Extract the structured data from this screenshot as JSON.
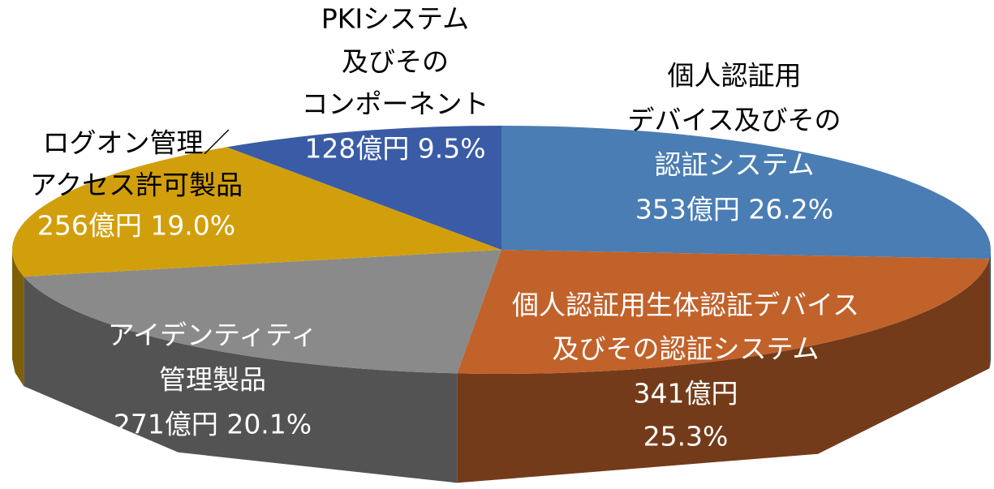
{
  "chart_data": {
    "type": "pie3d",
    "categories": [
      [
        "個人認証用",
        "デバイス及びその",
        "認証システム"
      ],
      [
        "個人認証用生体認証デバイス",
        "及びその認証システム"
      ],
      [
        "アイデンティティ",
        "管理製品"
      ],
      [
        "ログオン管理／",
        "アクセス許可製品"
      ],
      [
        "PKIシステム",
        "及びその",
        "コンポーネント"
      ]
    ],
    "values": [
      353,
      341,
      271,
      256,
      128
    ],
    "value_labels": [
      [
        "353億円 26.2%"
      ],
      [
        "341億円",
        "25.3%"
      ],
      [
        "271億円 20.1%"
      ],
      [
        "256億円 19.0%"
      ],
      [
        "128億円 9.5%"
      ]
    ],
    "colors": [
      "#4a7db3",
      "#c1622b",
      "#8a8a8a",
      "#d29f0c",
      "#3a5ba6"
    ]
  }
}
